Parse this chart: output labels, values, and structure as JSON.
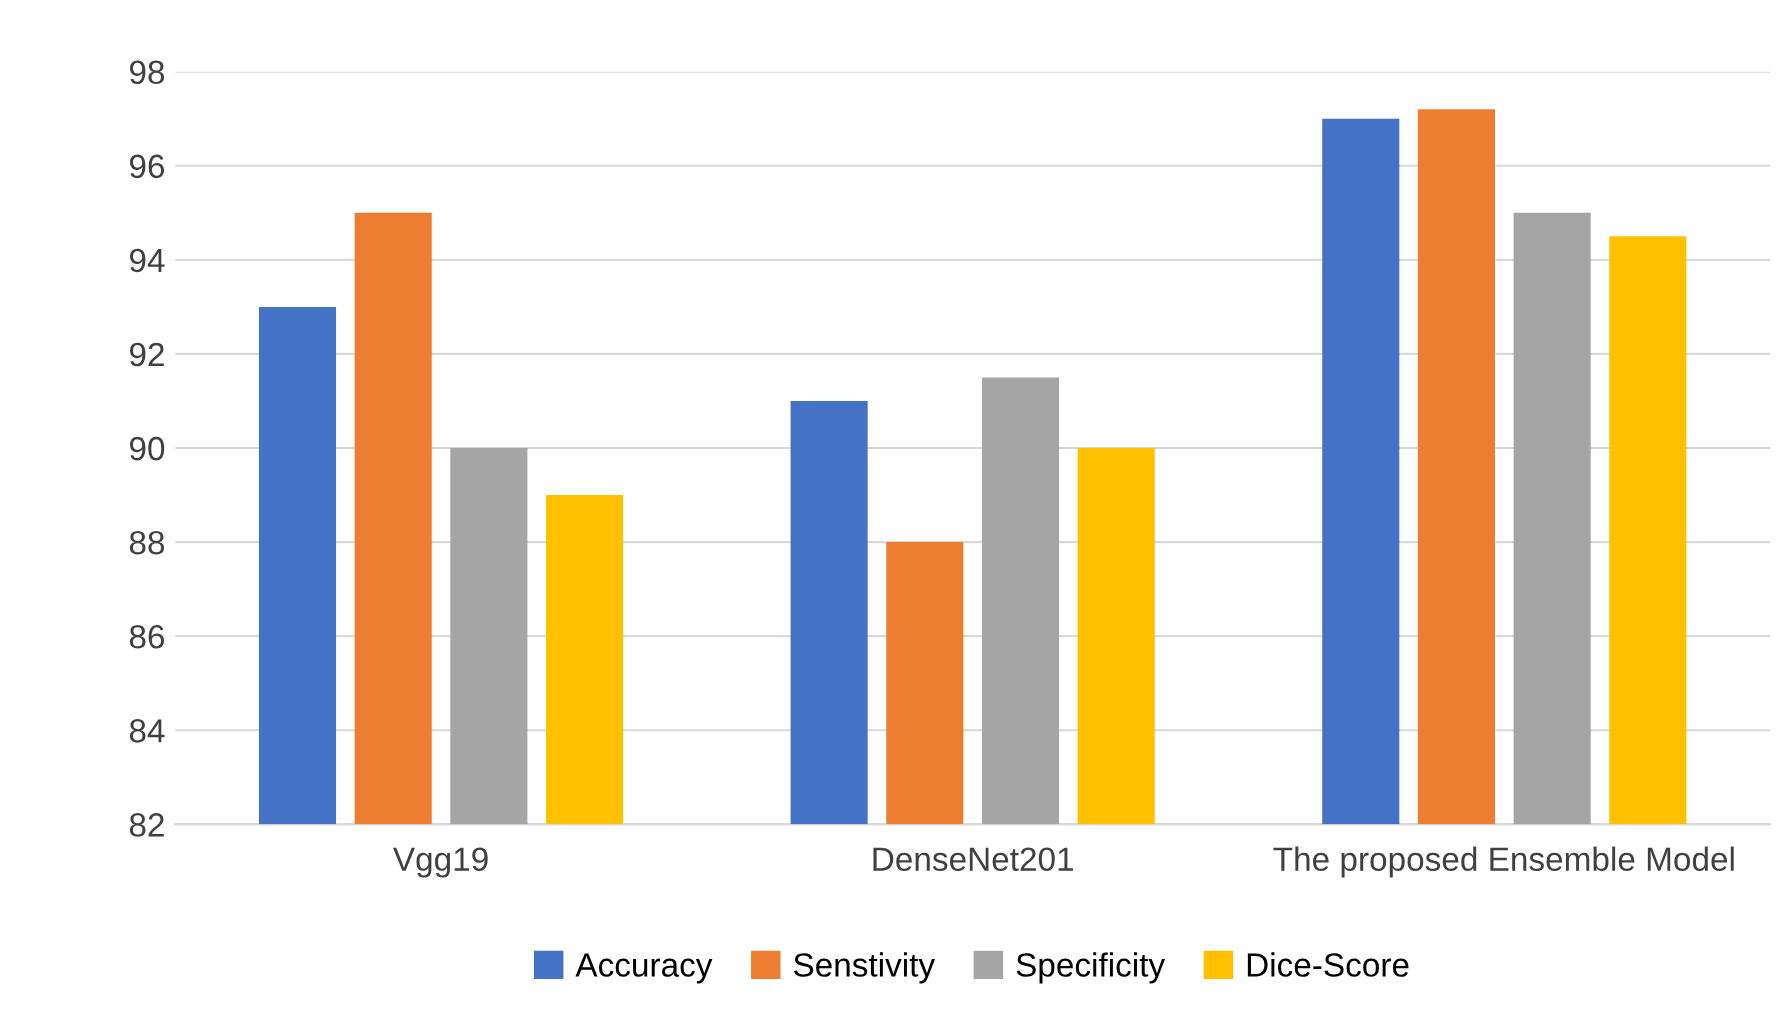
{
  "chart_data": {
    "type": "bar",
    "categories": [
      "Vgg19",
      "DenseNet201",
      "The proposed Ensemble Model"
    ],
    "series": [
      {
        "name": "Accuracy",
        "color": "#4472c4",
        "values": [
          93,
          91,
          97
        ]
      },
      {
        "name": "Senstivity",
        "color": "#ed7d31",
        "values": [
          95,
          88,
          97.2
        ]
      },
      {
        "name": "Specificity",
        "color": "#a5a5a5",
        "values": [
          90,
          91.5,
          95
        ]
      },
      {
        "name": "Dice-Score",
        "color": "#ffc000",
        "values": [
          89,
          90,
          94.5
        ]
      }
    ],
    "ylim": [
      82,
      98
    ],
    "yticks": [
      82,
      84,
      86,
      88,
      90,
      92,
      94,
      96,
      98
    ],
    "grid": "y",
    "legend": "bottom"
  }
}
